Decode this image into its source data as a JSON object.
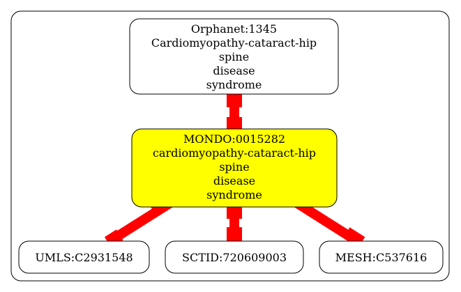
{
  "colors": {
    "edge": "#ff0000",
    "central_fill": "#ffff00",
    "node_fill": "#ffffff",
    "stroke": "#000000"
  },
  "nodes": {
    "orphanet": {
      "lines": [
        "Orphanet:1345",
        "Cardiomyopathy-cataract-hip",
        "spine",
        "disease",
        "syndrome"
      ]
    },
    "mondo": {
      "lines": [
        "MONDO:0015282",
        "cardiomyopathy-cataract-hip",
        "spine",
        "disease",
        "syndrome"
      ]
    },
    "umls": {
      "lines": [
        "UMLS:C2931548"
      ]
    },
    "sctid": {
      "lines": [
        "SCTID:720609003"
      ]
    },
    "mesh": {
      "lines": [
        "MESH:C537616"
      ]
    }
  }
}
